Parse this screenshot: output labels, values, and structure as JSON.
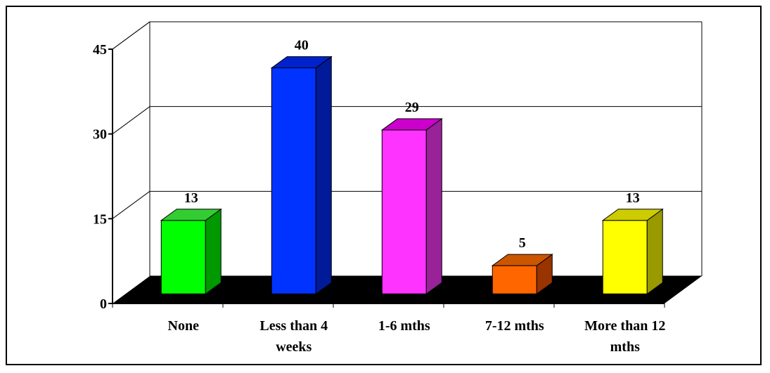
{
  "chart_data": {
    "type": "bar",
    "title": "",
    "xlabel": "",
    "ylabel": "",
    "categories": [
      [
        "None"
      ],
      [
        "Less than 4",
        "weeks"
      ],
      [
        "1-6 mths"
      ],
      [
        "7-12 mths"
      ],
      [
        "More than 12",
        "mths"
      ]
    ],
    "values": [
      13,
      40,
      29,
      5,
      13
    ],
    "data_labels": [
      "13",
      "40",
      "29",
      "5",
      "13"
    ],
    "ylim": [
      0,
      45
    ],
    "yticks": [
      0,
      15,
      30,
      45
    ],
    "ytick_labels": [
      "0",
      "15",
      "30",
      "45"
    ],
    "grid": true,
    "legend": "none",
    "bar_colors": [
      {
        "front": "#00ff00",
        "side": "#009900",
        "top": "#33cc33"
      },
      {
        "front": "#0033ff",
        "side": "#001a99",
        "top": "#0022cc"
      },
      {
        "front": "#ff33ff",
        "side": "#992299",
        "top": "#cc00cc"
      },
      {
        "front": "#ff6600",
        "side": "#993300",
        "top": "#cc5500"
      },
      {
        "front": "#ffff00",
        "side": "#999900",
        "top": "#cccc00"
      }
    ],
    "floor_color": "#000000"
  }
}
